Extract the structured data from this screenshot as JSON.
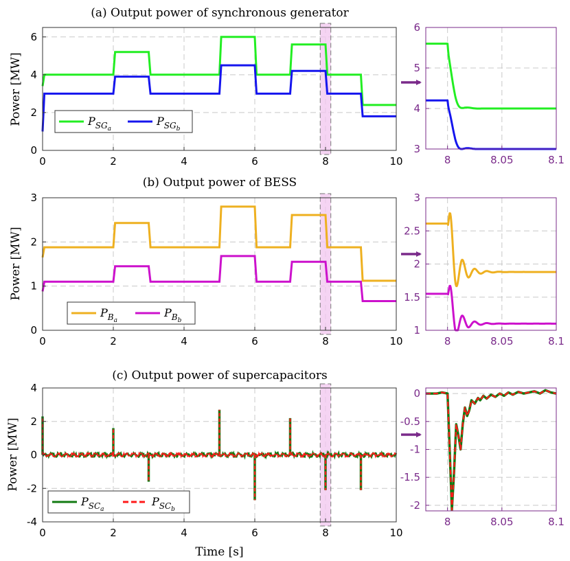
{
  "chart_data": [
    {
      "id": "a",
      "type": "line",
      "title": "(a) Output power of synchronous generator",
      "xlabel": "",
      "ylabel": "Power [MW]",
      "xlim": [
        0,
        10
      ],
      "ylim": [
        0,
        6.5
      ],
      "xticks": [
        0,
        2,
        4,
        6,
        8,
        10
      ],
      "yticks": [
        0,
        2,
        4,
        6
      ],
      "highlight_range": [
        7.85,
        8.15
      ],
      "legend": {
        "entries": [
          "P_SGa",
          "P_SGb"
        ],
        "location": "lower-left"
      },
      "series": [
        {
          "name": "P_SGa",
          "base": "P",
          "sub": "SG",
          "subsub": "a",
          "color": "#22ee22",
          "dash": "solid",
          "x": [
            0,
            0.05,
            2.0,
            2.05,
            3.0,
            3.05,
            5.0,
            5.05,
            6.0,
            6.05,
            7.0,
            7.05,
            8.0,
            8.05,
            9.0,
            9.05,
            10
          ],
          "y": [
            3.4,
            4.0,
            4.0,
            5.2,
            5.2,
            4.0,
            4.0,
            6.0,
            6.0,
            4.0,
            4.0,
            5.6,
            5.6,
            4.0,
            4.0,
            2.4,
            2.4
          ]
        },
        {
          "name": "P_SGb",
          "base": "P",
          "sub": "SG",
          "subsub": "b",
          "color": "#1515ee",
          "dash": "solid",
          "x": [
            0,
            0.05,
            2.0,
            2.05,
            3.0,
            3.05,
            5.0,
            5.05,
            6.0,
            6.05,
            7.0,
            7.05,
            8.0,
            8.05,
            9.0,
            9.05,
            10
          ],
          "y": [
            1.0,
            3.0,
            3.0,
            3.9,
            3.9,
            3.0,
            3.0,
            4.5,
            4.5,
            3.0,
            3.0,
            4.2,
            4.2,
            3.0,
            3.0,
            1.8,
            1.8
          ]
        }
      ],
      "zoom": {
        "xlim": [
          7.98,
          8.1
        ],
        "ylim": [
          3,
          6
        ],
        "xticks": [
          8,
          8.05,
          8.1
        ],
        "xtick_labels": [
          "8",
          "8.05",
          "8.1"
        ],
        "yticks": [
          3,
          4,
          5,
          6
        ],
        "ytick_labels": [
          "3",
          "4",
          "5",
          "6"
        ],
        "series": [
          {
            "name": "P_SGa",
            "color": "#22ee22",
            "dash": "solid",
            "start": 5.6,
            "end": 4.0,
            "step": 8.0,
            "amp": 0.45,
            "decay": 180,
            "freq": 380
          },
          {
            "name": "P_SGb",
            "color": "#1515ee",
            "dash": "solid",
            "start": 4.2,
            "end": 3.0,
            "step": 8.0,
            "amp": 0.45,
            "decay": 180,
            "freq": 380
          }
        ]
      }
    },
    {
      "id": "b",
      "type": "line",
      "title": "(b) Output power of BESS",
      "xlabel": "",
      "ylabel": "Power [MW]",
      "xlim": [
        0,
        10
      ],
      "ylim": [
        0,
        3
      ],
      "xticks": [
        0,
        2,
        4,
        6,
        8,
        10
      ],
      "yticks": [
        0,
        1,
        2,
        3
      ],
      "highlight_range": [
        7.85,
        8.15
      ],
      "legend": {
        "entries": [
          "P_Ba",
          "P_Bb"
        ],
        "location": "lower-left"
      },
      "series": [
        {
          "name": "P_Ba",
          "base": "P",
          "sub": "B",
          "subsub": "a",
          "color": "#eeb020",
          "dash": "solid",
          "x": [
            0,
            0.05,
            2.0,
            2.05,
            3.0,
            3.05,
            5.0,
            5.05,
            6.0,
            6.05,
            7.0,
            7.05,
            8.0,
            8.05,
            9.0,
            9.05,
            10
          ],
          "y": [
            1.65,
            1.88,
            1.88,
            2.43,
            2.43,
            1.88,
            1.88,
            2.8,
            2.8,
            1.88,
            1.88,
            2.61,
            2.61,
            1.88,
            1.88,
            1.12,
            1.12
          ]
        },
        {
          "name": "P_Bb",
          "base": "P",
          "sub": "B",
          "subsub": "b",
          "color": "#cc11cc",
          "dash": "solid",
          "x": [
            0,
            0.05,
            2.0,
            2.05,
            3.0,
            3.05,
            5.0,
            5.05,
            6.0,
            6.05,
            7.0,
            7.05,
            8.0,
            8.05,
            9.0,
            9.05,
            10
          ],
          "y": [
            0.88,
            1.1,
            1.1,
            1.45,
            1.45,
            1.1,
            1.1,
            1.68,
            1.68,
            1.1,
            1.1,
            1.55,
            1.55,
            1.1,
            1.1,
            0.66,
            0.66
          ]
        }
      ],
      "zoom": {
        "xlim": [
          7.98,
          8.1
        ],
        "ylim": [
          1,
          3
        ],
        "xticks": [
          8,
          8.05,
          8.1
        ],
        "xtick_labels": [
          "8",
          "8.05",
          "8.1"
        ],
        "yticks": [
          1,
          1.5,
          2,
          2.5,
          3
        ],
        "ytick_labels": [
          "1",
          "1.5",
          "2",
          "2.5",
          "3"
        ],
        "series": [
          {
            "name": "P_Ba",
            "color": "#eeb020",
            "dash": "solid",
            "start": 2.61,
            "end": 1.88,
            "step": 8.0,
            "amp": 0.75,
            "decay": 110,
            "freq": 560
          },
          {
            "name": "P_Bb",
            "color": "#cc11cc",
            "dash": "solid",
            "start": 1.55,
            "end": 1.1,
            "step": 8.0,
            "amp": 0.5,
            "decay": 110,
            "freq": 560
          }
        ]
      }
    },
    {
      "id": "c",
      "type": "line",
      "title": "(c) Output power of supercapacitors",
      "xlabel": "Time [s]",
      "ylabel": "Power [MW]",
      "xlim": [
        0,
        10
      ],
      "ylim": [
        -4,
        4
      ],
      "xticks": [
        0,
        2,
        4,
        6,
        8,
        10
      ],
      "yticks": [
        -4,
        -2,
        0,
        2,
        4
      ],
      "highlight_range": [
        7.85,
        8.15
      ],
      "legend": {
        "entries": [
          "P_SCa",
          "P_SCb"
        ],
        "location": "lower-left"
      },
      "spikes": {
        "x": [
          0,
          2,
          3,
          5,
          6,
          7,
          8,
          9
        ],
        "y": [
          2.3,
          1.6,
          -1.6,
          2.7,
          -2.7,
          2.2,
          -2.1,
          -2.1
        ]
      },
      "series": [
        {
          "name": "P_SCa",
          "base": "P",
          "sub": "SC",
          "subsub": "a",
          "color": "#127a12",
          "dash": "solid",
          "width": 3.5
        },
        {
          "name": "P_SCb",
          "base": "P",
          "sub": "SC",
          "subsub": "b",
          "color": "#ff1a1a",
          "dash": "dashed",
          "width": 2.2
        }
      ],
      "zoom": {
        "xlim": [
          7.98,
          8.1
        ],
        "ylim": [
          -2.1,
          0.1
        ],
        "xticks": [
          8,
          8.05,
          8.1
        ],
        "xtick_labels": [
          "8",
          "8.05",
          "8.1"
        ],
        "yticks": [
          -2,
          -1.5,
          -1,
          -0.5,
          0
        ],
        "ytick_labels": [
          "-2",
          "-1.5",
          "-1",
          "-0.5",
          "0"
        ],
        "series": [
          {
            "name": "P_SCa",
            "color": "#127a12",
            "dash": "solid",
            "width": 3.5
          },
          {
            "name": "P_SCb",
            "color": "#ff1a1a",
            "dash": "dashed",
            "width": 2.2
          }
        ],
        "points_x": [
          7.98,
          7.99,
          7.995,
          8.0,
          8.002,
          8.004,
          8.006,
          8.008,
          8.01,
          8.012,
          8.014,
          8.016,
          8.018,
          8.02,
          8.022,
          8.025,
          8.028,
          8.03,
          8.033,
          8.036,
          8.04,
          8.044,
          8.048,
          8.052,
          8.056,
          8.06,
          8.065,
          8.07,
          8.075,
          8.08,
          8.085,
          8.09,
          8.095,
          8.1
        ],
        "points_y": [
          0.0,
          0.0,
          0.02,
          0.0,
          -1.0,
          -2.08,
          -1.4,
          -0.55,
          -0.75,
          -1.0,
          -0.55,
          -0.25,
          -0.4,
          -0.3,
          -0.12,
          -0.18,
          -0.08,
          -0.12,
          -0.04,
          -0.09,
          -0.02,
          -0.06,
          0.0,
          -0.04,
          0.02,
          -0.02,
          0.03,
          0.0,
          0.02,
          0.04,
          0.0,
          0.06,
          0.02,
          0.0
        ]
      }
    }
  ]
}
